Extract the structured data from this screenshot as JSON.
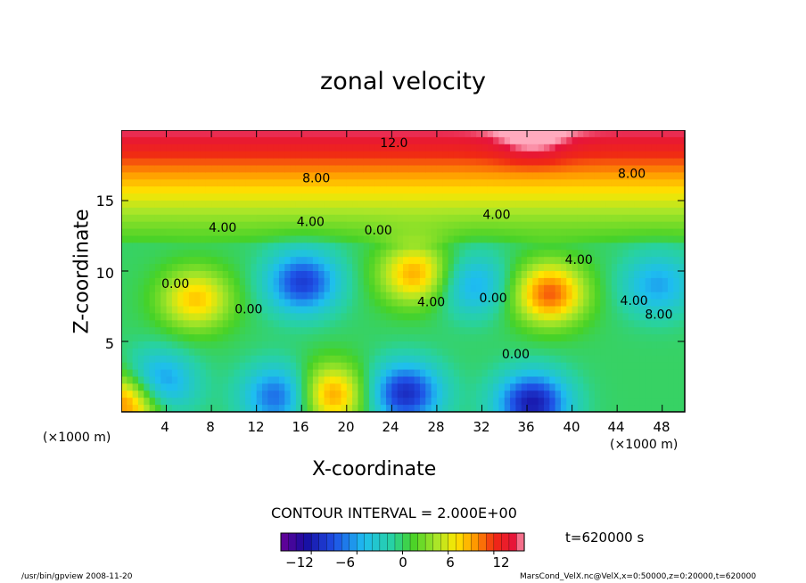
{
  "chart_data": {
    "type": "heatmap",
    "title": "zonal velocity",
    "xlabel": "X-coordinate",
    "ylabel": "Z-coordinate",
    "x_unit_left": "(×1000 m)",
    "x_unit_right": "(×1000 m)",
    "x_ticks": [
      "4",
      "8",
      "12",
      "16",
      "20",
      "24",
      "28",
      "32",
      "36",
      "40",
      "44",
      "48"
    ],
    "x_tick_values": [
      4,
      8,
      12,
      16,
      20,
      24,
      28,
      32,
      36,
      40,
      44,
      48
    ],
    "y_ticks": [
      "5",
      "10",
      "15"
    ],
    "y_tick_values": [
      5,
      10,
      15
    ],
    "xlim": [
      0,
      50
    ],
    "ylim": [
      0,
      20
    ],
    "contour_interval_label": "CONTOUR INTERVAL = 2.000E+00",
    "time_label": "t=620000 s",
    "colorbar": {
      "range": [
        -16,
        16
      ],
      "tick_labels": [
        "−12",
        "−6",
        "0",
        "6",
        "12"
      ],
      "tick_values": [
        -12,
        -6,
        0,
        6,
        12
      ]
    },
    "contour_labels": [
      {
        "text": "12.0",
        "x": 24.2,
        "y": 18.8
      },
      {
        "text": "8.00",
        "x": 17.3,
        "y": 16.3
      },
      {
        "text": "8.00",
        "x": 45.3,
        "y": 16.6
      },
      {
        "text": "4.00",
        "x": 9.0,
        "y": 12.8
      },
      {
        "text": "4.00",
        "x": 16.8,
        "y": 13.2
      },
      {
        "text": "4.00",
        "x": 33.3,
        "y": 13.7
      },
      {
        "text": "4.00",
        "x": 40.6,
        "y": 10.5
      },
      {
        "text": "0.00",
        "x": 22.8,
        "y": 12.6
      },
      {
        "text": "0.00",
        "x": 4.8,
        "y": 8.8
      },
      {
        "text": "0.00",
        "x": 11.3,
        "y": 7.0
      },
      {
        "text": "4.00",
        "x": 27.5,
        "y": 7.5
      },
      {
        "text": "0.00",
        "x": 33.0,
        "y": 7.8
      },
      {
        "text": "0.00",
        "x": 35.0,
        "y": 3.8
      },
      {
        "text": "4.00",
        "x": 45.5,
        "y": 7.6
      },
      {
        "text": "8.00",
        "x": 47.7,
        "y": 6.6
      }
    ],
    "features": [
      {
        "type": "max",
        "x": 36.5,
        "y": 19.2,
        "value": 14
      },
      {
        "type": "max",
        "x": 6.6,
        "y": 8.0,
        "value": 8
      },
      {
        "type": "max",
        "x": 26.1,
        "y": 9.8,
        "value": 9
      },
      {
        "type": "max",
        "x": 38.0,
        "y": 8.4,
        "value": 11
      },
      {
        "type": "max",
        "x": 18.5,
        "y": 1.2,
        "value": 10
      },
      {
        "type": "max",
        "x": 0.8,
        "y": 0.8,
        "value": 13
      },
      {
        "type": "min",
        "x": 16.1,
        "y": 9.2,
        "value": -10
      },
      {
        "type": "min",
        "x": 3.0,
        "y": 1.9,
        "value": -10
      },
      {
        "type": "min",
        "x": 14.1,
        "y": 1.1,
        "value": -9
      },
      {
        "type": "min",
        "x": 25.2,
        "y": 1.3,
        "value": -11
      },
      {
        "type": "min",
        "x": 36.5,
        "y": 0.6,
        "value": -12
      },
      {
        "type": "min",
        "x": 31.2,
        "y": 9.0,
        "value": -6
      },
      {
        "type": "min",
        "x": 47.6,
        "y": 9.0,
        "value": -6
      }
    ]
  },
  "footer": {
    "left": "/usr/bin/gpview  2008-11-20",
    "right": "MarsCond_VelX.nc@VelX,x=0:50000,z=0:20000,t=620000"
  }
}
